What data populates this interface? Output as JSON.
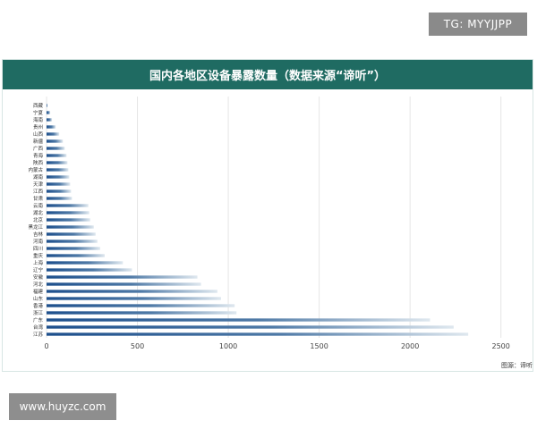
{
  "watermark_top": "TG: MYYJJPP",
  "watermark_bottom": "www.huyzc.com",
  "source_note": "图源：谛听",
  "colors": {
    "header": "#1f6b62",
    "bar_dark": "#1d4f8c",
    "bar_light": "#dfe8ef",
    "grid": "#e6e6e6"
  },
  "chart_data": {
    "type": "bar",
    "orientation": "horizontal",
    "title": "国内各地区设备暴露数量（数据来源“谛听”）",
    "categories": [
      "西藏",
      "宁夏",
      "海南",
      "贵州",
      "山西",
      "新疆",
      "广西",
      "青海",
      "陕西",
      "内蒙古",
      "湖南",
      "天津",
      "江西",
      "甘肃",
      "云南",
      "湖北",
      "北京",
      "黑龙江",
      "吉林",
      "河南",
      "四川",
      "重庆",
      "上海",
      "辽宁",
      "安徽",
      "河北",
      "福建",
      "山东",
      "香港",
      "浙江",
      "广东",
      "台湾",
      "江苏"
    ],
    "values": [
      5,
      20,
      30,
      50,
      70,
      90,
      100,
      110,
      115,
      120,
      125,
      130,
      135,
      140,
      230,
      235,
      240,
      260,
      270,
      280,
      295,
      320,
      420,
      470,
      830,
      850,
      940,
      960,
      1035,
      1045,
      2110,
      2240,
      2320
    ],
    "xlim": [
      0,
      2600
    ],
    "xticks": [
      0,
      500,
      1000,
      1500,
      2000,
      2500
    ],
    "grid": true
  }
}
